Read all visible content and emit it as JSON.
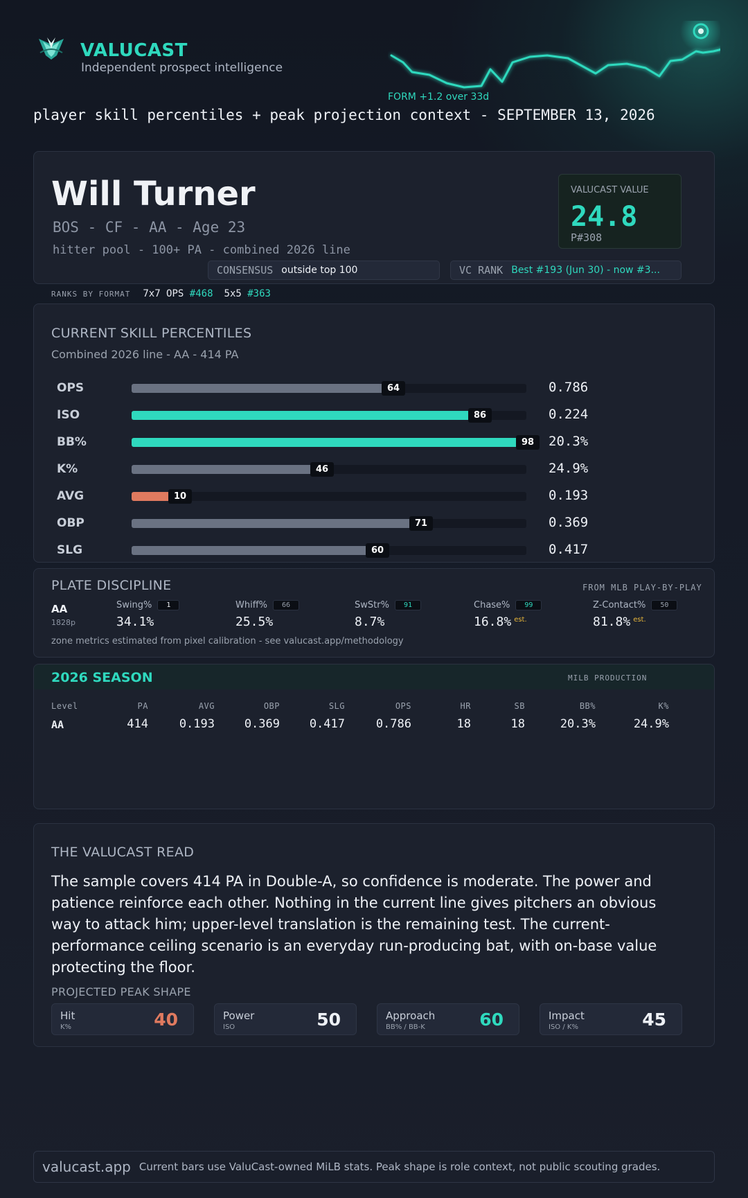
{
  "brand": {
    "name": "VALUCAST",
    "tagline": "Independent prospect intelligence",
    "form_label": "FORM +1.2 over 33d",
    "form_delta": 1.2,
    "accent": "#2fd9be"
  },
  "subtitle": "player skill percentiles + peak projection context - SEPTEMBER 13, 2026",
  "player": {
    "name": "Will Turner",
    "meta": "BOS - CF - AA - Age 23",
    "pool": "hitter pool - 100+ PA - combined 2026 line",
    "value_label": "VALUCAST VALUE",
    "value": "24.8",
    "value_rank": "P#308",
    "consensus_label": "CONSENSUS",
    "consensus_value": "outside top 100",
    "vc_rank_label": "VC RANK",
    "vc_rank_value": "Best #193 (Jun 30) - now #3..."
  },
  "ranks": {
    "label": "RANKS BY FORMAT",
    "formats": [
      {
        "name": "7x7 OPS",
        "rank": "#468"
      },
      {
        "name": "5x5",
        "rank": "#363"
      }
    ]
  },
  "skills": {
    "title": "CURRENT SKILL PERCENTILES",
    "subtitle": "Combined 2026 line - AA - 414 PA",
    "rows": [
      {
        "label": "OPS",
        "pct": 64,
        "pct_label": "64",
        "value": "0.786",
        "color": "#6a7282"
      },
      {
        "label": "ISO",
        "pct": 86,
        "pct_label": "86",
        "value": "0.224",
        "color": "#2fd9be"
      },
      {
        "label": "BB%",
        "pct": 98,
        "pct_label": "98",
        "value": "20.3%",
        "color": "#2fd9be"
      },
      {
        "label": "K%",
        "pct": 46,
        "pct_label": "46",
        "value": "24.9%",
        "color": "#6a7282"
      },
      {
        "label": "AVG",
        "pct": 10,
        "pct_label": "10",
        "value": "0.193",
        "color": "#e07a5f"
      },
      {
        "label": "OBP",
        "pct": 71,
        "pct_label": "71",
        "value": "0.369",
        "color": "#6a7282"
      },
      {
        "label": "SLG",
        "pct": 60,
        "pct_label": "60",
        "value": "0.417",
        "color": "#6a7282"
      }
    ]
  },
  "plate": {
    "title": "PLATE DISCIPLINE",
    "source": "FROM MLB PLAY-BY-PLAY",
    "level": "AA",
    "pitches": "1828p",
    "metrics": [
      {
        "name": "Swing%",
        "pct": "1",
        "value": "34.1%",
        "est": "",
        "badge_color": "#eef1f6"
      },
      {
        "name": "Whiff%",
        "pct": "66",
        "value": "25.5%",
        "est": "",
        "badge_color": "#9aa2ae"
      },
      {
        "name": "SwStr%",
        "pct": "91",
        "value": "8.7%",
        "est": "",
        "badge_color": "#2fd9be"
      },
      {
        "name": "Chase%",
        "pct": "99",
        "value": "16.8%",
        "est": "est.",
        "badge_color": "#2fd9be"
      },
      {
        "name": "Z-Contact%",
        "pct": "50",
        "value": "81.8%",
        "est": "est.",
        "badge_color": "#9aa2ae"
      }
    ],
    "note": "zone metrics estimated from pixel calibration - see valucast.app/methodology"
  },
  "season": {
    "title": "2026 SEASON",
    "source": "MILB PRODUCTION",
    "headers": [
      "Level",
      "PA",
      "AVG",
      "OBP",
      "SLG",
      "OPS",
      "HR",
      "SB",
      "BB%",
      "K%"
    ],
    "row": [
      "AA",
      "414",
      "0.193",
      "0.369",
      "0.417",
      "0.786",
      "18",
      "18",
      "20.3%",
      "24.9%"
    ]
  },
  "read": {
    "title": "THE VALUCAST READ",
    "body": "The sample covers 414 PA in Double-A, so confidence is moderate. The power and patience reinforce each other. Nothing in the current line gives pitchers an obvious way to attack him; upper-level translation is the remaining test. The current-performance ceiling scenario is an everyday run-producing bat, with on-base value protecting the floor.",
    "peak_title": "PROJECTED PEAK SHAPE",
    "peak": [
      {
        "name": "Hit",
        "sub": "K%",
        "grade": "40",
        "color": "#e07a5f"
      },
      {
        "name": "Power",
        "sub": "ISO",
        "grade": "50",
        "color": "#eef1f6"
      },
      {
        "name": "Approach",
        "sub": "BB% / BB-K",
        "grade": "60",
        "color": "#2fd9be"
      },
      {
        "name": "Impact",
        "sub": "ISO / K%",
        "grade": "45",
        "color": "#eef1f6"
      }
    ]
  },
  "footer": {
    "site": "valucast.app",
    "text": "Current bars use ValuCast-owned MiLB stats. Peak shape is role context, not public scouting grades."
  }
}
